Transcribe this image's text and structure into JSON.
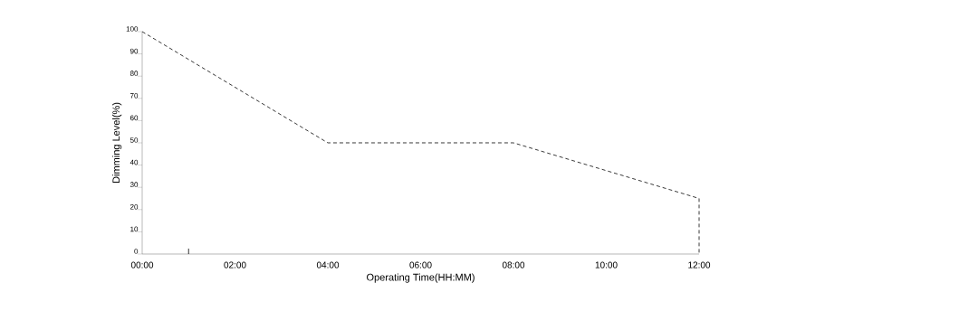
{
  "chart_data": {
    "type": "line",
    "xlabel": "Operating Time(HH:MM)",
    "ylabel": "Dimming Level(%)",
    "x": [
      0,
      4,
      8,
      12,
      12
    ],
    "series": [
      {
        "color": "#222222",
        "values": [
          100,
          50,
          50,
          25,
          0
        ]
      }
    ],
    "line_style": "dashed",
    "marker": "none",
    "xlim": [
      0,
      12
    ],
    "ylim": [
      0,
      100
    ],
    "xticks": [
      {
        "value": 0,
        "label": "00:00"
      },
      {
        "value": 1,
        "label": null
      },
      {
        "value": 2,
        "label": "02:00"
      },
      {
        "value": 4,
        "label": "04:00"
      },
      {
        "value": 6,
        "label": "06:00"
      },
      {
        "value": 8,
        "label": "08:00"
      },
      {
        "value": 10,
        "label": "10:00"
      },
      {
        "value": 12,
        "label": "12:00"
      }
    ],
    "yticks": [
      0,
      10,
      20,
      30,
      40,
      50,
      60,
      70,
      80,
      90,
      100
    ],
    "grid": false
  }
}
